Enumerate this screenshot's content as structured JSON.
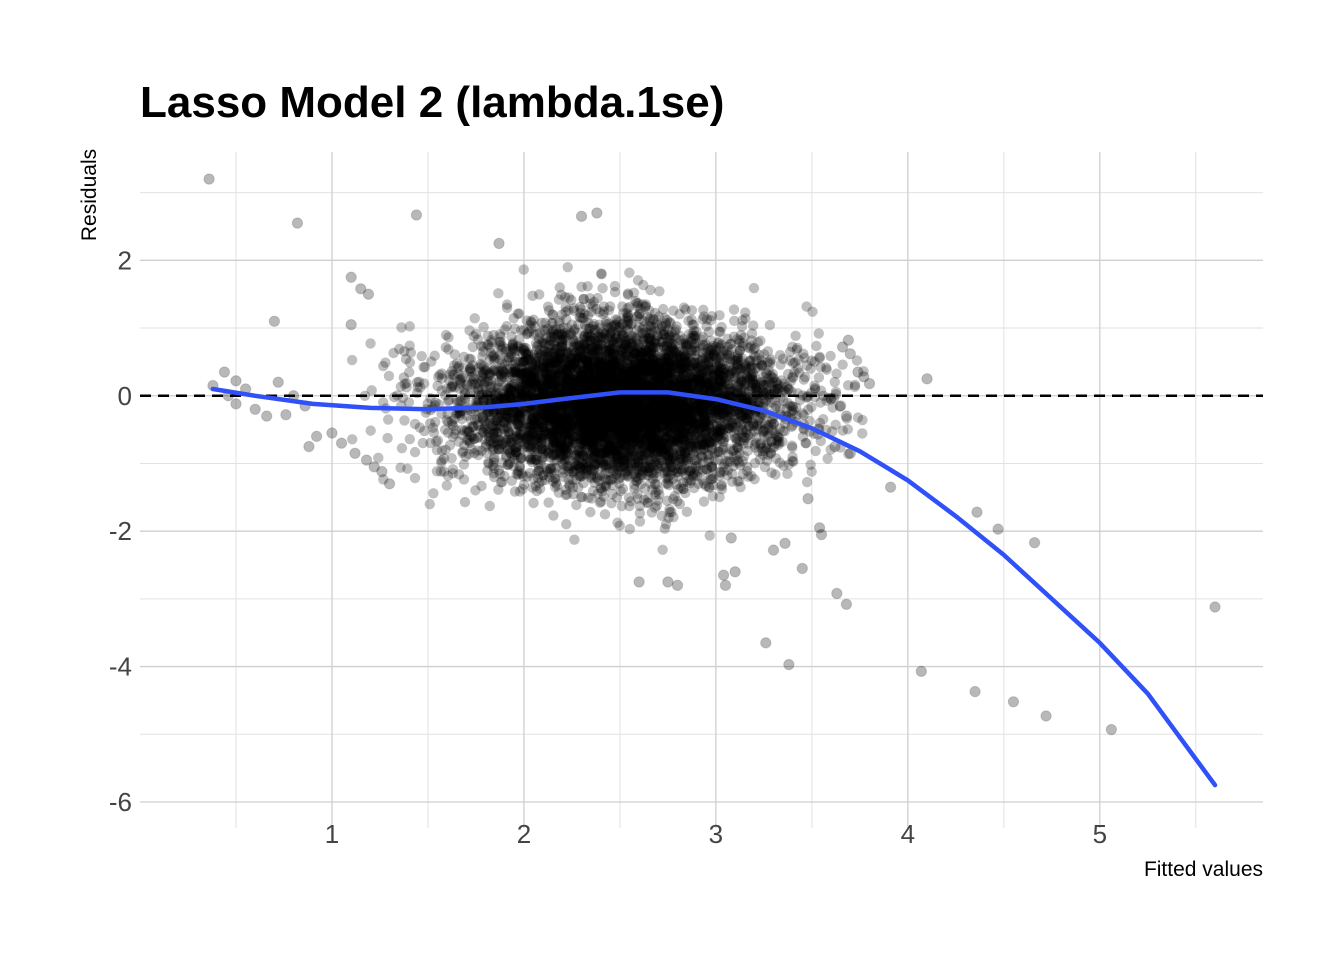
{
  "chart_data": {
    "type": "scatter",
    "title": "Lasso Model 2 (lambda.1se)",
    "xlabel": "Fitted values",
    "ylabel": "Residuals",
    "xlim": [
      0.0,
      5.85
    ],
    "ylim": [
      -6.0,
      3.6
    ],
    "x_ticks": [
      1,
      2,
      3,
      4,
      5
    ],
    "y_ticks": [
      -6,
      -4,
      -2,
      0,
      2
    ],
    "grid": true,
    "point_color": "#000000",
    "point_alpha": 0.25,
    "reference_line": {
      "y": 0,
      "style": "dashed",
      "color": "#000000"
    },
    "cloud": {
      "center_x": 2.5,
      "center_y": -0.1,
      "spread_x": 0.42,
      "spread_y": 0.62,
      "x_range": [
        1.0,
        3.8
      ],
      "n_points": 6500
    },
    "points": [
      {
        "x": 0.36,
        "y": 3.2
      },
      {
        "x": 0.82,
        "y": 2.55
      },
      {
        "x": 1.44,
        "y": 2.67
      },
      {
        "x": 1.87,
        "y": 2.25
      },
      {
        "x": 2.3,
        "y": 2.65
      },
      {
        "x": 2.38,
        "y": 2.7
      },
      {
        "x": 0.7,
        "y": 1.1
      },
      {
        "x": 0.38,
        "y": 0.15
      },
      {
        "x": 0.44,
        "y": 0.35
      },
      {
        "x": 0.5,
        "y": 0.22
      },
      {
        "x": 0.55,
        "y": 0.1
      },
      {
        "x": 0.72,
        "y": 0.2
      },
      {
        "x": 0.8,
        "y": 0.0
      },
      {
        "x": 0.86,
        "y": -0.15
      },
      {
        "x": 0.6,
        "y": -0.2
      },
      {
        "x": 0.66,
        "y": -0.3
      },
      {
        "x": 0.76,
        "y": -0.28
      },
      {
        "x": 0.92,
        "y": -0.6
      },
      {
        "x": 0.88,
        "y": -0.75
      },
      {
        "x": 0.5,
        "y": -0.12
      },
      {
        "x": 0.46,
        "y": 0.0
      },
      {
        "x": 1.0,
        "y": -0.55
      },
      {
        "x": 1.05,
        "y": -0.7
      },
      {
        "x": 1.12,
        "y": -0.85
      },
      {
        "x": 1.18,
        "y": -0.95
      },
      {
        "x": 1.22,
        "y": -1.05
      },
      {
        "x": 1.26,
        "y": -1.12
      },
      {
        "x": 1.3,
        "y": -1.3
      },
      {
        "x": 1.1,
        "y": 1.75
      },
      {
        "x": 1.15,
        "y": 1.58
      },
      {
        "x": 1.19,
        "y": 1.5
      },
      {
        "x": 1.1,
        "y": 1.05
      },
      {
        "x": 3.66,
        "y": 0.72
      },
      {
        "x": 3.69,
        "y": 0.82
      },
      {
        "x": 3.7,
        "y": 0.62
      },
      {
        "x": 3.74,
        "y": 0.35
      },
      {
        "x": 3.77,
        "y": 0.28
      },
      {
        "x": 3.8,
        "y": 0.18
      },
      {
        "x": 4.1,
        "y": 0.25
      },
      {
        "x": 3.6,
        "y": -0.05
      },
      {
        "x": 3.65,
        "y": -0.15
      },
      {
        "x": 3.68,
        "y": -0.3
      },
      {
        "x": 3.62,
        "y": -0.75
      },
      {
        "x": 3.7,
        "y": -0.85
      },
      {
        "x": 3.48,
        "y": -1.52
      },
      {
        "x": 3.54,
        "y": -1.95
      },
      {
        "x": 3.55,
        "y": -2.05
      },
      {
        "x": 3.45,
        "y": -2.55
      },
      {
        "x": 3.36,
        "y": -2.18
      },
      {
        "x": 3.3,
        "y": -2.28
      },
      {
        "x": 3.63,
        "y": -2.92
      },
      {
        "x": 3.68,
        "y": -3.08
      },
      {
        "x": 3.04,
        "y": -2.65
      },
      {
        "x": 3.05,
        "y": -2.8
      },
      {
        "x": 3.08,
        "y": -2.1
      },
      {
        "x": 3.1,
        "y": -2.6
      },
      {
        "x": 2.8,
        "y": -2.8
      },
      {
        "x": 2.75,
        "y": -2.75
      },
      {
        "x": 2.6,
        "y": -2.75
      },
      {
        "x": 3.26,
        "y": -3.65
      },
      {
        "x": 3.38,
        "y": -3.97
      },
      {
        "x": 3.91,
        "y": -1.35
      },
      {
        "x": 4.36,
        "y": -1.72
      },
      {
        "x": 4.47,
        "y": -1.97
      },
      {
        "x": 4.66,
        "y": -2.17
      },
      {
        "x": 4.07,
        "y": -4.07
      },
      {
        "x": 4.35,
        "y": -4.37
      },
      {
        "x": 4.55,
        "y": -4.52
      },
      {
        "x": 4.72,
        "y": -4.73
      },
      {
        "x": 5.06,
        "y": -4.93
      },
      {
        "x": 5.6,
        "y": -3.12
      }
    ],
    "smooth": {
      "color": "#3050f8",
      "x": [
        0.38,
        0.6,
        0.9,
        1.2,
        1.5,
        1.8,
        2.0,
        2.2,
        2.5,
        2.75,
        3.0,
        3.25,
        3.5,
        3.75,
        4.0,
        4.25,
        4.5,
        4.75,
        5.0,
        5.25,
        5.6
      ],
      "y": [
        0.1,
        0.0,
        -0.12,
        -0.18,
        -0.2,
        -0.17,
        -0.12,
        -0.05,
        0.05,
        0.05,
        -0.05,
        -0.22,
        -0.48,
        -0.82,
        -1.25,
        -1.78,
        -2.35,
        -3.0,
        -3.65,
        -4.4,
        -5.75
      ]
    }
  }
}
